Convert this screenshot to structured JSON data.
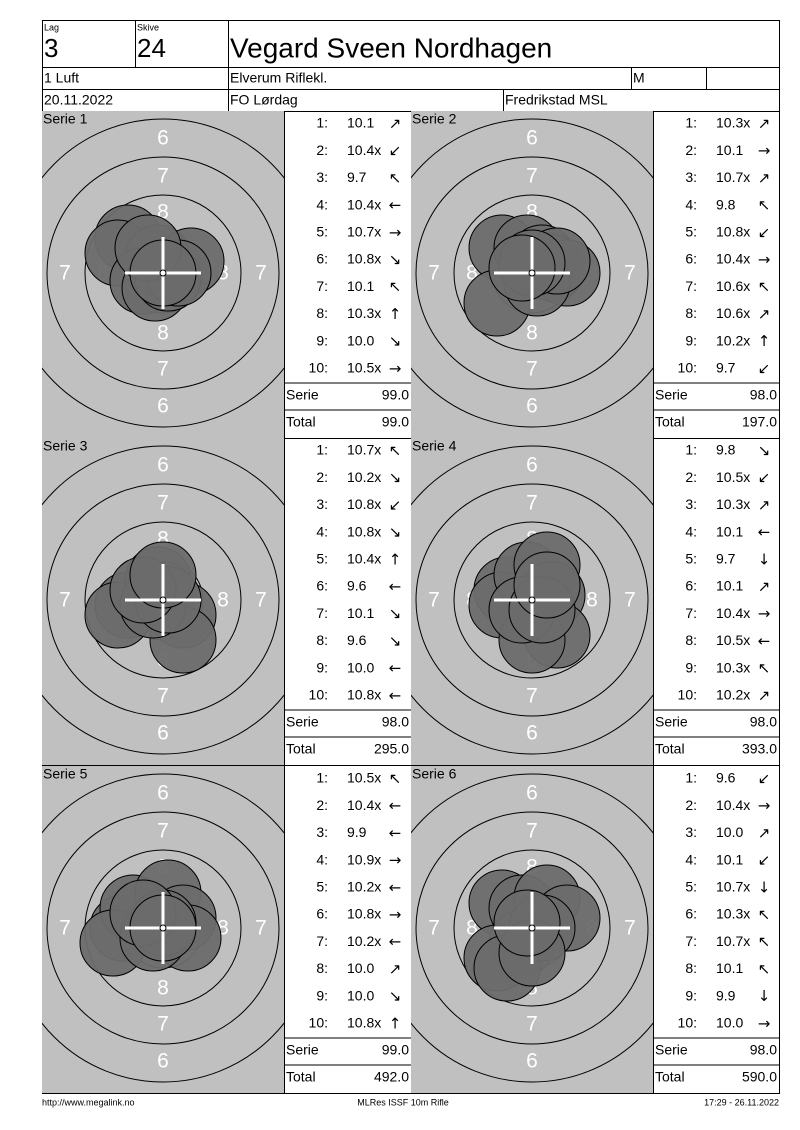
{
  "header": {
    "lag_label": "Lag",
    "lag": "3",
    "skive_label": "Skive",
    "skive": "24",
    "name": "Vegard Sveen Nordhagen",
    "class": "1 Luft",
    "club": "Elverum Riflekl.",
    "gender": "M",
    "date": "20.11.2022",
    "event": "FO Lørdag",
    "venue": "Fredrikstad MSL"
  },
  "ring_labels": [
    "6",
    "7",
    "8"
  ],
  "shot_labels": [
    "1:",
    "2:",
    "3:",
    "4:",
    "5:",
    "6:",
    "7:",
    "8:",
    "9:",
    "10:"
  ],
  "serie_label": "Serie",
  "total_label": "Total",
  "series": [
    {
      "title": "Serie 1",
      "scores": [
        "10.1",
        "10.4x",
        "9.7",
        "10.4x",
        "10.7x",
        "10.8x",
        "10.1",
        "10.3x",
        "10.0",
        "10.5x"
      ],
      "directions": [
        "↗",
        "↙",
        "↖",
        "←",
        "→",
        "↘",
        "↖",
        "↑",
        "↘",
        "→"
      ],
      "serie": "99.0",
      "total": "99.0"
    },
    {
      "title": "Serie 2",
      "scores": [
        "10.3x",
        "10.1",
        "10.7x",
        "9.8",
        "10.8x",
        "10.4x",
        "10.6x",
        "10.6x",
        "10.2x",
        "9.7"
      ],
      "directions": [
        "↗",
        "→",
        "↗",
        "↖",
        "↙",
        "→",
        "↖",
        "↗",
        "↑",
        "↙"
      ],
      "serie": "98.0",
      "total": "197.0"
    },
    {
      "title": "Serie 3",
      "scores": [
        "10.7x",
        "10.2x",
        "10.8x",
        "10.8x",
        "10.4x",
        "9.6",
        "10.1",
        "9.6",
        "10.0",
        "10.8x"
      ],
      "directions": [
        "↖",
        "↘",
        "↙",
        "↘",
        "↑",
        "←",
        "↘",
        "↘",
        "←",
        "←"
      ],
      "serie": "98.0",
      "total": "295.0"
    },
    {
      "title": "Serie 4",
      "scores": [
        "9.8",
        "10.5x",
        "10.3x",
        "10.1",
        "9.7",
        "10.1",
        "10.4x",
        "10.5x",
        "10.3x",
        "10.2x"
      ],
      "directions": [
        "↘",
        "↙",
        "↗",
        "←",
        "↓",
        "↗",
        "→",
        "←",
        "↖",
        "↗"
      ],
      "serie": "98.0",
      "total": "393.0"
    },
    {
      "title": "Serie 5",
      "scores": [
        "10.5x",
        "10.4x",
        "9.9",
        "10.9x",
        "10.2x",
        "10.8x",
        "10.2x",
        "10.0",
        "10.0",
        "10.8x"
      ],
      "directions": [
        "↖",
        "←",
        "←",
        "→",
        "←",
        "→",
        "←",
        "↗",
        "↘",
        "↑"
      ],
      "serie": "99.0",
      "total": "492.0"
    },
    {
      "title": "Serie 6",
      "scores": [
        "9.6",
        "10.4x",
        "10.0",
        "10.1",
        "10.7x",
        "10.3x",
        "10.7x",
        "10.1",
        "9.9",
        "10.0"
      ],
      "directions": [
        "↙",
        "→",
        "↗",
        "↙",
        "↓",
        "↖",
        "↖",
        "↖",
        "↓",
        "→"
      ],
      "serie": "98.0",
      "total": "590.0"
    }
  ],
  "footer": {
    "url": "http://www.megalink.no",
    "program": "MLRes ISSF 10m Rifle",
    "timestamp": "17:29 - 26.11.2022"
  }
}
